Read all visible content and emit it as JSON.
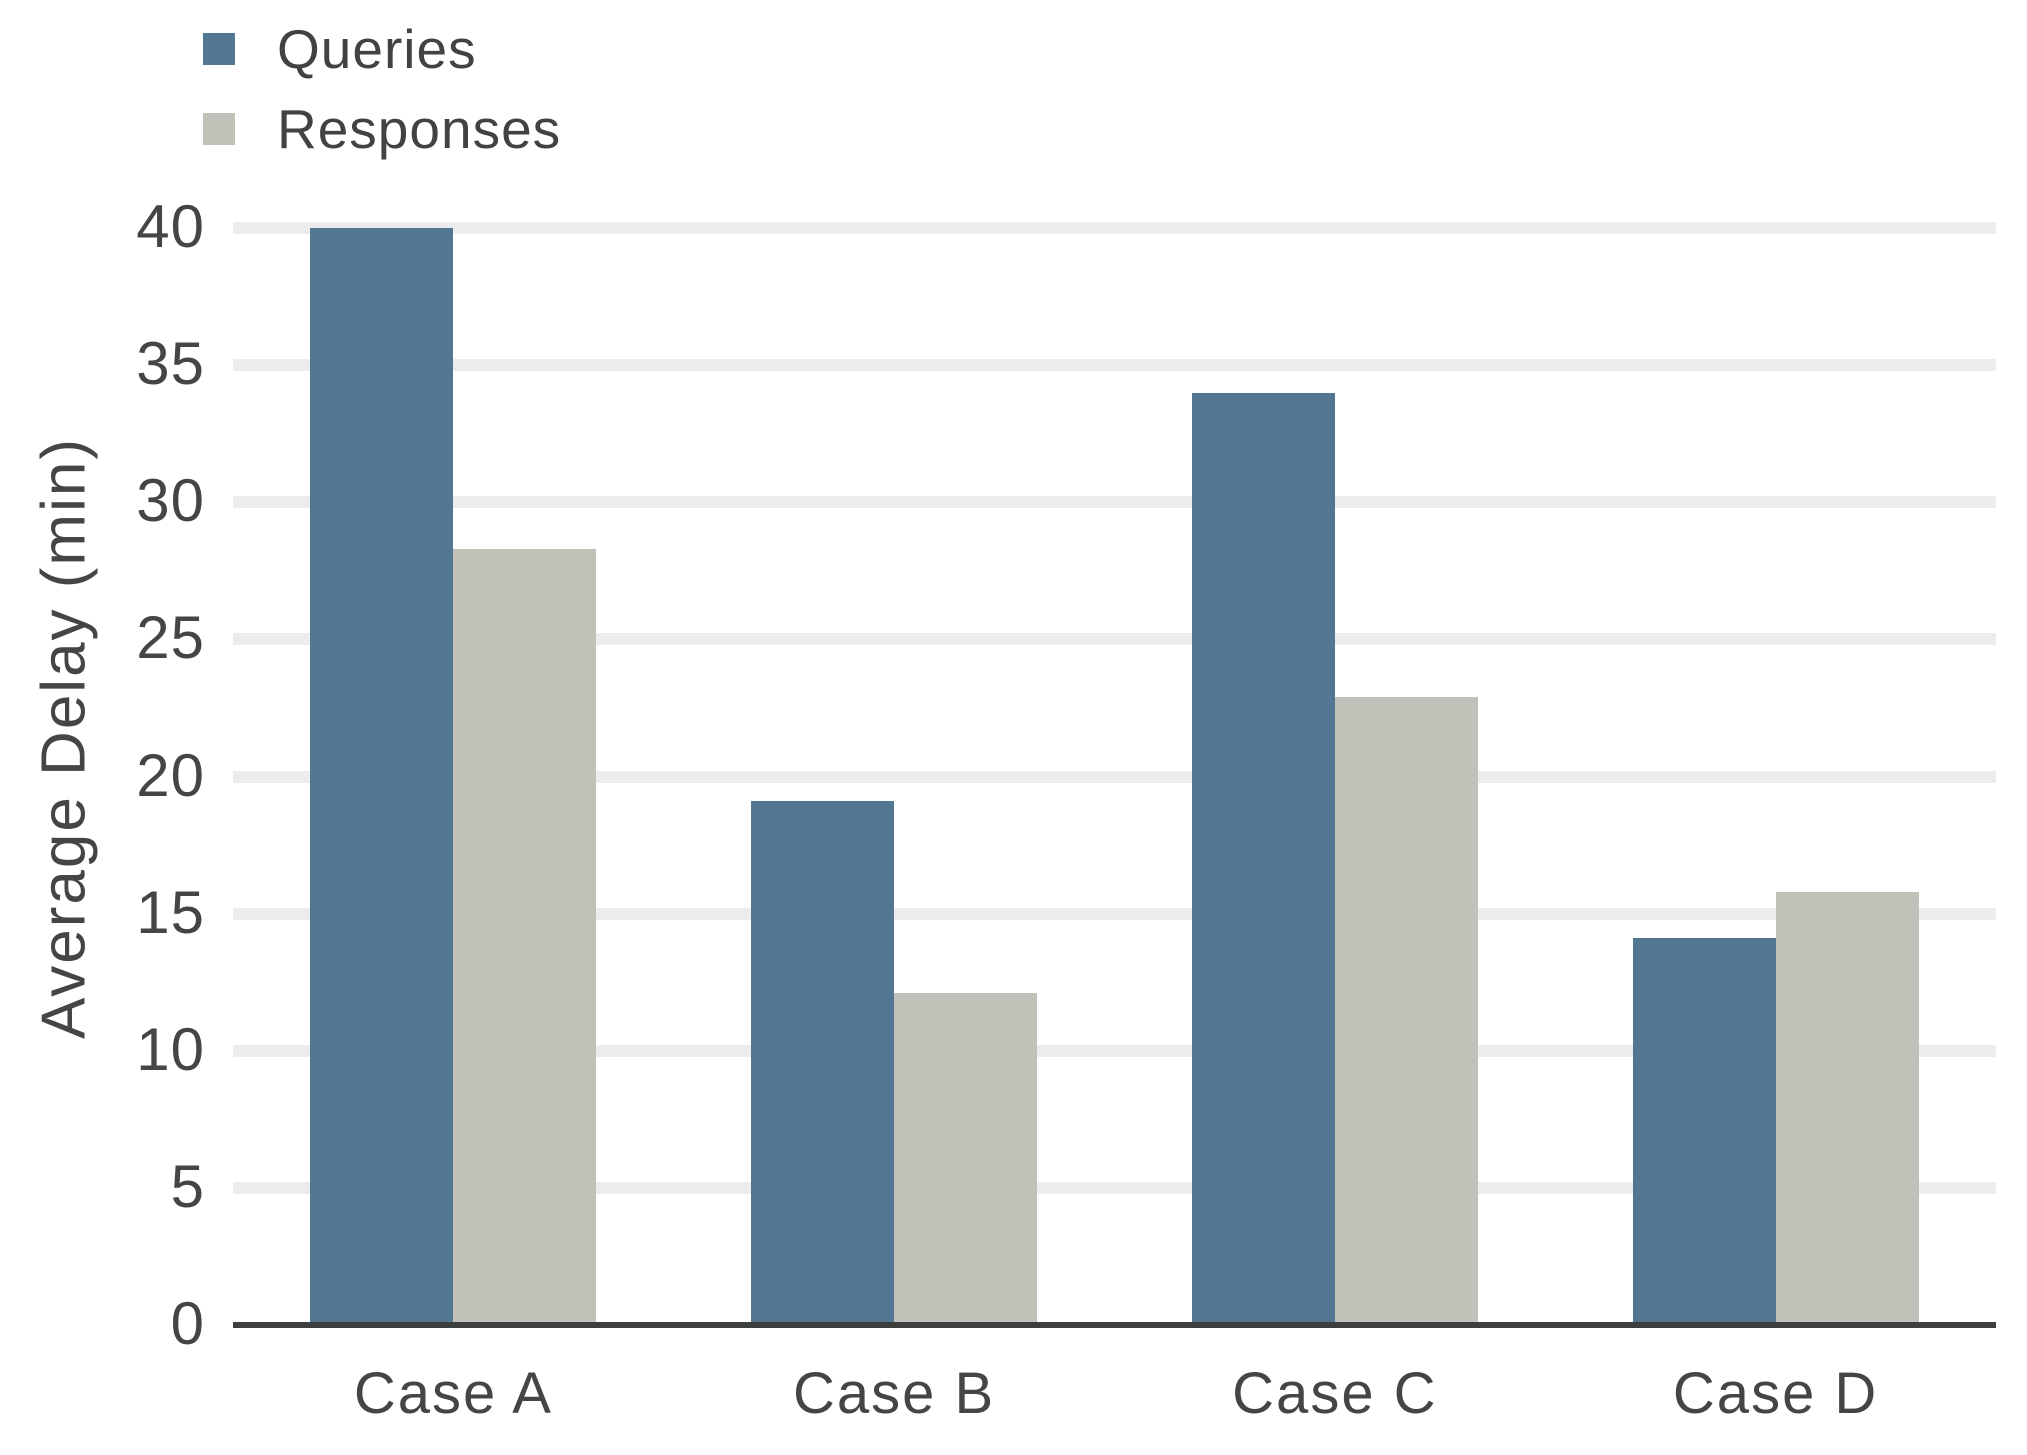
{
  "chart_data": {
    "type": "bar",
    "title": "",
    "xlabel": "",
    "ylabel": "Average Delay (min)",
    "categories": [
      "Case A",
      "Case B",
      "Case C",
      "Case D"
    ],
    "series": [
      {
        "name": "Queries",
        "color": "#527792",
        "values": [
          40.0,
          19.1,
          34.0,
          14.1
        ]
      },
      {
        "name": "Responses",
        "color": "#c1c1ba",
        "values": [
          28.3,
          12.1,
          22.9,
          15.8
        ]
      }
    ],
    "ylim": [
      0,
      40
    ],
    "yticks": [
      0,
      5,
      10,
      15,
      20,
      25,
      30,
      35,
      40
    ],
    "grid": "horizontal",
    "legend_position": "top-left",
    "colors": {
      "grid": "#ececec",
      "axis": "#3d3f3f",
      "text": "#454545"
    }
  }
}
